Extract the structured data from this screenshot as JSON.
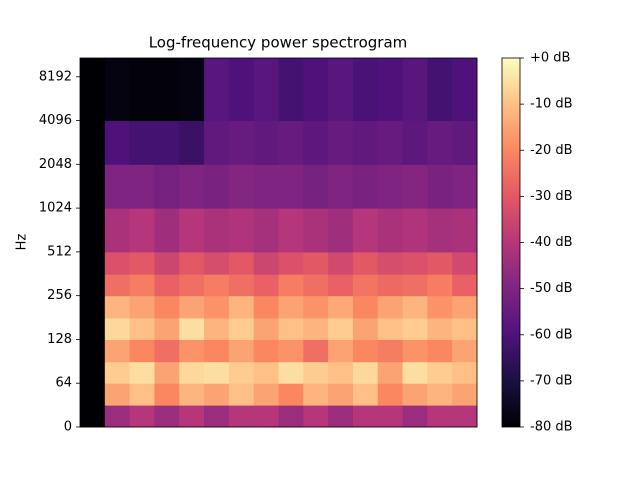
{
  "chart_data": {
    "type": "heatmap",
    "title": "Log-frequency power spectrogram",
    "y_label": "Hz",
    "yscale": "symlog",
    "base": 2,
    "linthresh": 64,
    "ylim": [
      0,
      11025
    ],
    "yticks": [
      0,
      64,
      128,
      256,
      512,
      1024,
      2048,
      4096,
      8192
    ],
    "y_edges": [
      0,
      32,
      64,
      90,
      128,
      180,
      256,
      360,
      512,
      1024,
      2048,
      4096,
      11025
    ],
    "colormap": "magma",
    "clim": [
      -80,
      0
    ],
    "cticks": [
      {
        "value": 0,
        "label": "+0 dB"
      },
      {
        "value": -10,
        "label": "-10 dB"
      },
      {
        "value": -20,
        "label": "-20 dB"
      },
      {
        "value": -30,
        "label": "-30 dB"
      },
      {
        "value": -40,
        "label": "-40 dB"
      },
      {
        "value": -50,
        "label": "-50 dB"
      },
      {
        "value": -60,
        "label": "-60 dB"
      },
      {
        "value": -70,
        "label": "-70 dB"
      },
      {
        "value": -80,
        "label": "-80 dB"
      }
    ],
    "z": [
      [
        -80,
        -45,
        -40,
        -45,
        -40,
        -45,
        -40,
        -40,
        -45,
        -40,
        -45,
        -40,
        -40,
        -45,
        -40,
        -40
      ],
      [
        -80,
        -15,
        -10,
        -20,
        -12,
        -15,
        -10,
        -15,
        -20,
        -12,
        -15,
        -10,
        -20,
        -15,
        -12,
        -15
      ],
      [
        -80,
        -8,
        -5,
        -15,
        -6,
        -5,
        -8,
        -10,
        -5,
        -8,
        -10,
        -6,
        -15,
        -5,
        -8,
        -10
      ],
      [
        -80,
        -15,
        -20,
        -25,
        -18,
        -20,
        -15,
        -20,
        -18,
        -25,
        -15,
        -20,
        -22,
        -18,
        -20,
        -15
      ],
      [
        -80,
        -6,
        -10,
        -15,
        -5,
        -12,
        -8,
        -15,
        -10,
        -12,
        -8,
        -15,
        -10,
        -8,
        -12,
        -10
      ],
      [
        -80,
        -12,
        -15,
        -20,
        -15,
        -18,
        -12,
        -20,
        -15,
        -18,
        -14,
        -20,
        -15,
        -12,
        -18,
        -15
      ],
      [
        -80,
        -25,
        -22,
        -28,
        -25,
        -22,
        -25,
        -28,
        -22,
        -25,
        -28,
        -24,
        -26,
        -25,
        -22,
        -28
      ],
      [
        -80,
        -32,
        -30,
        -35,
        -30,
        -33,
        -30,
        -35,
        -32,
        -30,
        -34,
        -30,
        -33,
        -32,
        -30,
        -34
      ],
      [
        -80,
        -42,
        -40,
        -44,
        -40,
        -42,
        -41,
        -43,
        -40,
        -42,
        -44,
        -40,
        -42,
        -41,
        -43,
        -42
      ],
      [
        -80,
        -50,
        -50,
        -52,
        -50,
        -51,
        -49,
        -50,
        -50,
        -52,
        -50,
        -51,
        -50,
        -49,
        -51,
        -50
      ],
      [
        -80,
        -60,
        -62,
        -62,
        -64,
        -56,
        -55,
        -56,
        -55,
        -57,
        -55,
        -56,
        -55,
        -57,
        -55,
        -56
      ],
      [
        -80,
        -78,
        -79,
        -79,
        -78,
        -58,
        -60,
        -58,
        -62,
        -60,
        -58,
        -61,
        -60,
        -58,
        -62,
        -60
      ]
    ]
  }
}
